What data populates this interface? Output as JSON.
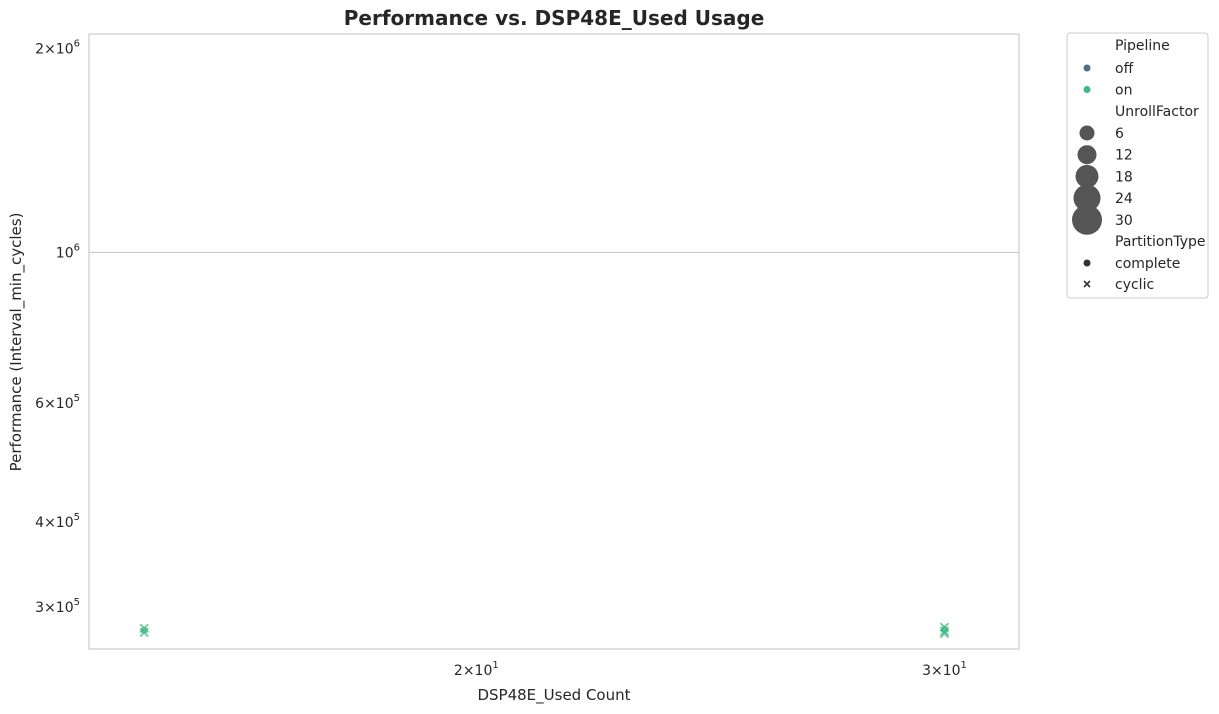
{
  "chart_data": {
    "type": "scatter",
    "title": "Performance vs. DSP48E_Used Usage",
    "xlabel": "DSP48E_Used Count",
    "ylabel": "Performance (Interval_min_cycles)",
    "xscale": "log",
    "yscale": "log",
    "xlim": [
      14.3,
      32
    ],
    "ylim": [
      260000,
      2100000
    ],
    "x_ticks": [
      {
        "value": 20,
        "mantissa": "2",
        "exp": "1"
      },
      {
        "value": 30,
        "mantissa": "3",
        "exp": "1"
      }
    ],
    "y_ticks": [
      {
        "value": 2000000,
        "mantissa": "2",
        "exp": "6"
      },
      {
        "value": 1000000,
        "mantissa": "",
        "exp": "6"
      },
      {
        "value": 600000,
        "mantissa": "6",
        "exp": "5"
      },
      {
        "value": 400000,
        "mantissa": "4",
        "exp": "5"
      },
      {
        "value": 300000,
        "mantissa": "3",
        "exp": "5"
      }
    ],
    "grid": true,
    "legend_position": "outside-right",
    "colors": {
      "off": "#4c6e8f",
      "on": "#3dba7e",
      "size_marker": "#555555"
    },
    "legend": {
      "hue_title": "Pipeline",
      "hue": [
        {
          "label": "off",
          "color": "#4c6e8f"
        },
        {
          "label": "on",
          "color": "#3dba7e"
        }
      ],
      "size_title": "UnrollFactor",
      "sizes": [
        {
          "label": "6",
          "r": 7.5
        },
        {
          "label": "12",
          "r": 9.5
        },
        {
          "label": "18",
          "r": 11.5
        },
        {
          "label": "24",
          "r": 13.5
        },
        {
          "label": "30",
          "r": 15
        }
      ],
      "style_title": "PartitionType",
      "styles": [
        {
          "label": "complete",
          "marker": "circle"
        },
        {
          "label": "cyclic",
          "marker": "x"
        }
      ]
    },
    "series": [
      {
        "name": "on",
        "points": [
          {
            "x": 15,
            "y": 279000,
            "marker": "x"
          },
          {
            "x": 15,
            "y": 277000,
            "marker": "circle"
          },
          {
            "x": 15,
            "y": 275000,
            "marker": "x"
          },
          {
            "x": 30,
            "y": 280000,
            "marker": "x"
          },
          {
            "x": 30,
            "y": 278000,
            "marker": "circle"
          },
          {
            "x": 30,
            "y": 276000,
            "marker": "x"
          },
          {
            "x": 30,
            "y": 274000,
            "marker": "x"
          }
        ]
      }
    ]
  }
}
